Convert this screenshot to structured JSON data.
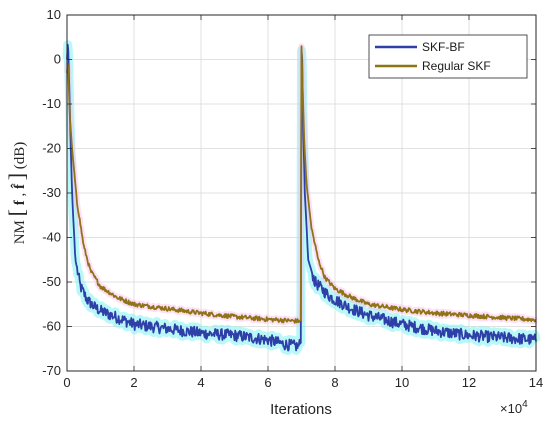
{
  "chart_data": {
    "type": "line",
    "xlabel": "Iterations",
    "ylabel_main": "NM",
    "ylabel_bracket_open": "[",
    "ylabel_arg1": "f",
    "ylabel_comma": ",",
    "ylabel_arg2": "f̂",
    "ylabel_bracket_close": "]",
    "ylabel_unit": "(dB)",
    "x_exponent_base": "×10",
    "x_exponent_power": "4",
    "xlim": [
      0,
      14
    ],
    "ylim": [
      -70,
      10
    ],
    "xticks": [
      0,
      2,
      4,
      6,
      8,
      10,
      12,
      14
    ],
    "xtick_labels": [
      "0",
      "2",
      "4",
      "6",
      "8",
      "10",
      "12",
      "14"
    ],
    "yticks": [
      10,
      0,
      -10,
      -20,
      -30,
      -40,
      -50,
      -60,
      -70
    ],
    "ytick_labels": [
      "10",
      "0",
      "-10",
      "-20",
      "-30",
      "-40",
      "-50",
      "-60",
      "-70"
    ],
    "grid": true,
    "legend_position": "top-right",
    "series": [
      {
        "name": "SKF-BF",
        "color": "#2e3fa8",
        "band_color": "#7ff2f2",
        "x": [
          0,
          0.03,
          0.08,
          0.15,
          0.25,
          0.4,
          0.6,
          0.8,
          1.0,
          1.5,
          2.0,
          3.0,
          4.0,
          5.0,
          6.0,
          6.5,
          6.9,
          6.99,
          7.0,
          7.02,
          7.05,
          7.1,
          7.2,
          7.4,
          7.6,
          7.8,
          8.0,
          8.5,
          9.0,
          10.0,
          11.0,
          12.0,
          13.0,
          14.0
        ],
        "y": [
          0,
          5,
          -10,
          -30,
          -45,
          -51,
          -54,
          -55.5,
          -56.5,
          -58,
          -59.5,
          -60.5,
          -61.5,
          -62,
          -63,
          -64,
          -64.5,
          -63.5,
          2,
          0,
          -15,
          -30,
          -45,
          -50,
          -51.5,
          -53,
          -54,
          -56,
          -57.5,
          -59.5,
          -61,
          -62,
          -62.5,
          -63
        ]
      },
      {
        "name": "Regular SKF",
        "color": "#8c7417",
        "band_color": "#ffb8e8",
        "x": [
          0,
          0.03,
          0.08,
          0.15,
          0.3,
          0.5,
          0.7,
          1.0,
          1.5,
          2.0,
          3.0,
          4.0,
          5.0,
          6.0,
          6.9,
          6.99,
          7.0,
          7.03,
          7.08,
          7.15,
          7.3,
          7.5,
          7.7,
          8.0,
          8.5,
          9.0,
          10.0,
          11.0,
          12.0,
          13.0,
          14.0
        ],
        "y": [
          -3,
          0,
          -12,
          -20,
          -32,
          -42,
          -47.5,
          -51,
          -53.5,
          -55,
          -56,
          -57,
          -57.8,
          -58.4,
          -58.8,
          -58.5,
          3,
          -5,
          -18,
          -28,
          -38,
          -45,
          -49,
          -51.5,
          -53.5,
          -55,
          -56.2,
          -57,
          -57.5,
          -58,
          -58.5
        ]
      }
    ]
  }
}
